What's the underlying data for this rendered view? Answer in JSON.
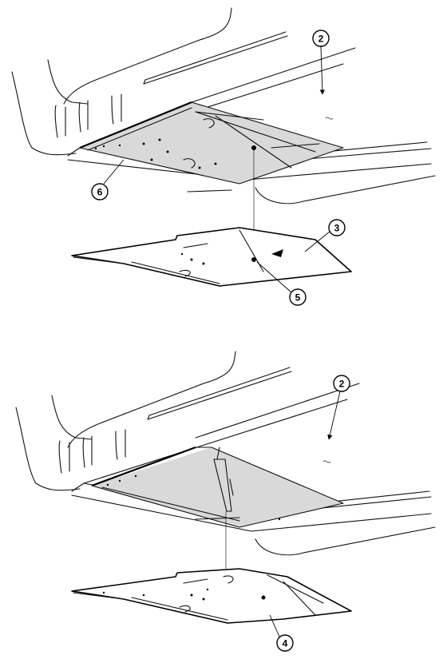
{
  "callouts": [
    {
      "id": "c2a",
      "label": "2"
    },
    {
      "id": "c6",
      "label": "6"
    },
    {
      "id": "c3",
      "label": "3"
    },
    {
      "id": "c5",
      "label": "5"
    },
    {
      "id": "c2b",
      "label": "2"
    },
    {
      "id": "c4",
      "label": "4"
    }
  ]
}
